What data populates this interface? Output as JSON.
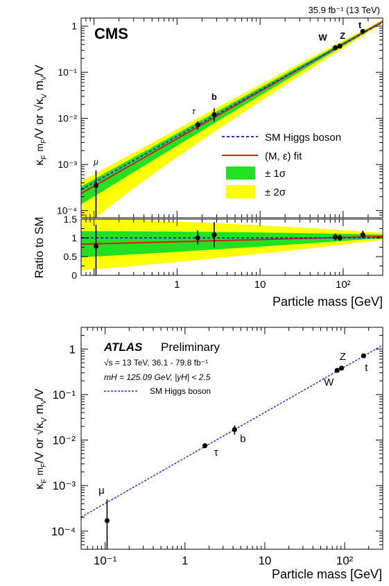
{
  "colors": {
    "sm_line": "#1f2fd8",
    "fit_line": "#e01818",
    "band_1sigma": "#22e022",
    "band_2sigma": "#ffff00",
    "marker": "#000000"
  },
  "chart_data": [
    {
      "type": "scatter",
      "experiment": "CMS",
      "lumi_label": "35.9 fb⁻¹ (13 TeV)",
      "y_scale": "log",
      "x_scale": "log",
      "xlim": [
        0.07,
        300
      ],
      "ylim": [
        7e-05,
        1.5
      ],
      "xlabel": "Particle mass [GeV]",
      "ylabel": "κF mF/V or √κV mV/V",
      "x_tick_labels": [
        "1",
        "10",
        "10²"
      ],
      "y_tick_labels": [
        "10⁻⁴",
        "10⁻³",
        "10⁻²",
        "10⁻¹",
        "1"
      ],
      "legend": {
        "position": "middle-right",
        "entries": [
          "SM Higgs boson",
          "(M, ε) fit",
          "± 1σ",
          "± 2σ"
        ]
      },
      "points": [
        {
          "label": "μ",
          "x": 0.1057,
          "y": 0.00035,
          "y_lo": 7e-05,
          "y_hi": 0.00075
        },
        {
          "label": "τ",
          "x": 1.777,
          "y": 0.0072,
          "y_lo": 0.0057,
          "y_hi": 0.0087
        },
        {
          "label": "b",
          "x": 2.8,
          "y": 0.012,
          "y_lo": 0.0085,
          "y_hi": 0.0165
        },
        {
          "label": "W",
          "x": 80.4,
          "y": 0.34,
          "y_lo": 0.31,
          "y_hi": 0.37
        },
        {
          "label": "Z",
          "x": 91.2,
          "y": 0.37,
          "y_lo": 0.34,
          "y_hi": 0.4
        },
        {
          "label": "t",
          "x": 172.5,
          "y": 0.77,
          "y_lo": 0.7,
          "y_hi": 0.84
        }
      ],
      "ratio_panel": {
        "ylabel": "Ratio to SM",
        "ylim": [
          0,
          1.5
        ],
        "y_tick_labels": [
          "0",
          "0.5",
          "1",
          "1.5"
        ],
        "points": [
          {
            "x": 0.1057,
            "y": 0.78,
            "y_lo": 0.0,
            "y_hi": 1.35
          },
          {
            "x": 1.777,
            "y": 1.0,
            "y_lo": 0.82,
            "y_hi": 1.2
          },
          {
            "x": 2.8,
            "y": 1.08,
            "y_lo": 0.75,
            "y_hi": 1.42
          },
          {
            "x": 80.4,
            "y": 1.02,
            "y_lo": 0.93,
            "y_hi": 1.12
          },
          {
            "x": 91.2,
            "y": 1.0,
            "y_lo": 0.92,
            "y_hi": 1.09
          },
          {
            "x": 172.5,
            "y": 1.08,
            "y_lo": 0.98,
            "y_hi": 1.19
          }
        ],
        "fit_ratio_at_xmin": 0.83,
        "fit_ratio_at_xmax": 1.04
      }
    },
    {
      "type": "scatter",
      "experiment": "ATLAS",
      "experiment_suffix": "Preliminary",
      "info_line_1": "√s = 13 TeV, 36.1 - 79.8 fb⁻¹",
      "info_line_2": "mH = 125.09 GeV, |yH| < 2.5",
      "y_scale": "log",
      "x_scale": "log",
      "xlim": [
        0.05,
        300
      ],
      "ylim": [
        4e-05,
        3
      ],
      "xlabel": "Particle mass [GeV]",
      "ylabel": "κF mF/V or √κV mV/V",
      "x_tick_labels": [
        "10⁻¹",
        "1",
        "10",
        "10²"
      ],
      "y_tick_labels": [
        "10⁻⁴",
        "10⁻³",
        "10⁻²",
        "10⁻¹",
        "1"
      ],
      "legend": {
        "position": "top-left",
        "entries": [
          "SM Higgs boson"
        ]
      },
      "points": [
        {
          "label": "μ",
          "x": 0.1057,
          "y": 0.00017,
          "y_lo": 3e-05,
          "y_hi": 0.0005
        },
        {
          "label": "τ",
          "x": 1.777,
          "y": 0.0075,
          "y_lo": 0.0067,
          "y_hi": 0.0085
        },
        {
          "label": "b",
          "x": 4.18,
          "y": 0.017,
          "y_lo": 0.013,
          "y_hi": 0.021
        },
        {
          "label": "W",
          "x": 80.4,
          "y": 0.34,
          "y_lo": 0.32,
          "y_hi": 0.36
        },
        {
          "label": "Z",
          "x": 91.2,
          "y": 0.38,
          "y_lo": 0.36,
          "y_hi": 0.4
        },
        {
          "label": "t",
          "x": 172.5,
          "y": 0.71,
          "y_lo": 0.67,
          "y_hi": 0.75
        }
      ]
    }
  ]
}
